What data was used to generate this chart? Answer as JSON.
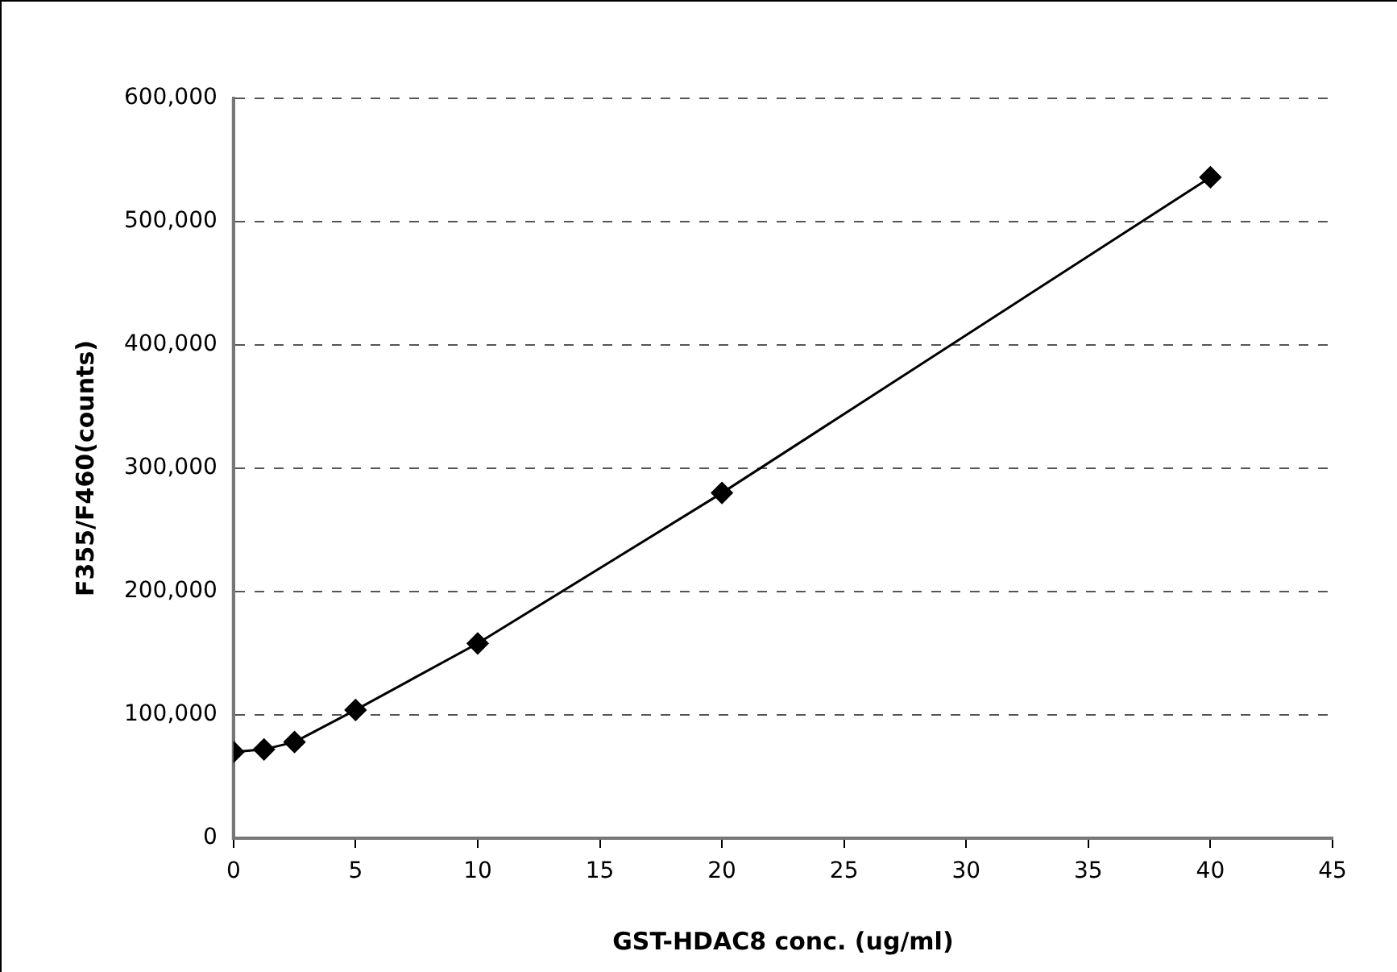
{
  "chart_data": {
    "type": "line",
    "xlabel": "GST-HDAC8 conc. (ug/ml)",
    "ylabel": "F355/F460(counts)",
    "x": [
      0,
      1.25,
      2.5,
      5,
      10,
      20,
      40
    ],
    "series": [
      {
        "color": "#000000",
        "values": [
          70000,
          72000,
          78000,
          104000,
          158000,
          280000,
          536000
        ]
      }
    ],
    "xlim": [
      0,
      45
    ],
    "xticks": [
      0,
      5,
      10,
      15,
      20,
      25,
      30,
      35,
      40,
      45
    ],
    "ylim": [
      0,
      600000
    ],
    "yticks": [
      {
        "value": 0,
        "label": "0"
      },
      {
        "value": 100000,
        "label": "100,000"
      },
      {
        "value": 200000,
        "label": "200,000"
      },
      {
        "value": 300000,
        "label": "300,000"
      },
      {
        "value": 400000,
        "label": "400,000"
      },
      {
        "value": 500000,
        "label": "500,000"
      },
      {
        "value": 600000,
        "label": "600,000"
      }
    ],
    "grid": "y",
    "marker": "diamond",
    "line_style": "solid",
    "legend": false
  }
}
